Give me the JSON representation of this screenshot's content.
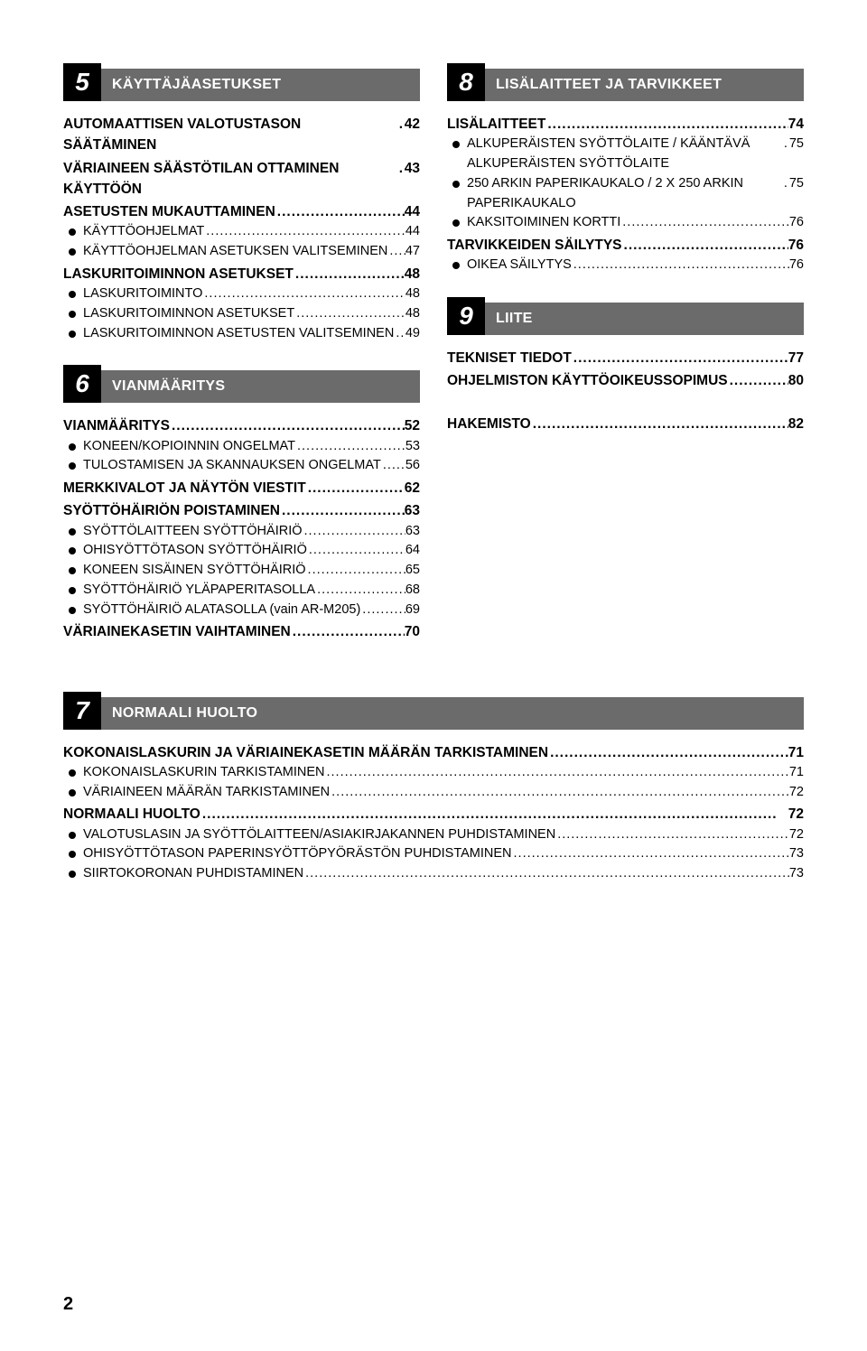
{
  "page_number": "2",
  "colors": {
    "section_num_bg": "#000000",
    "section_title_bg": "#6b6b6b",
    "text": "#000000",
    "bg": "#ffffff"
  },
  "sections": [
    {
      "num": "5",
      "title": "KÄYTTÄJÄASETUKSET",
      "col": 0,
      "items": [
        {
          "l": 1,
          "t": "AUTOMAATTISEN VALOTUSTASON SÄÄTÄMINEN",
          "p": "42"
        },
        {
          "l": 1,
          "t": "VÄRIAINEEN SÄÄSTÖTILAN OTTAMINEN KÄYTTÖÖN",
          "p": "43"
        },
        {
          "l": 1,
          "t": "ASETUSTEN MUKAUTTAMINEN",
          "p": "44"
        },
        {
          "l": 2,
          "t": "KÄYTTÖOHJELMAT",
          "p": "44"
        },
        {
          "l": 2,
          "t": "KÄYTTÖOHJELMAN ASETUKSEN VALITSEMINEN",
          "p": "47"
        },
        {
          "l": 1,
          "t": "LASKURITOIMINNON ASETUKSET",
          "p": "48"
        },
        {
          "l": 2,
          "t": "LASKURITOIMINTO",
          "p": "48"
        },
        {
          "l": 2,
          "t": "LASKURITOIMINNON ASETUKSET",
          "p": "48"
        },
        {
          "l": 2,
          "t": "LASKURITOIMINNON ASETUSTEN VALITSEMINEN",
          "p": "49"
        }
      ]
    },
    {
      "num": "6",
      "title": "VIANMÄÄRITYS",
      "col": 0,
      "items": [
        {
          "l": 1,
          "t": "VIANMÄÄRITYS",
          "p": "52"
        },
        {
          "l": 2,
          "t": "KONEEN/KOPIOINNIN ONGELMAT",
          "p": "53"
        },
        {
          "l": 2,
          "t": "TULOSTAMISEN JA SKANNAUKSEN ONGELMAT",
          "p": "56"
        },
        {
          "l": 1,
          "t": "MERKKIVALOT JA NÄYTÖN VIESTIT",
          "p": "62"
        },
        {
          "l": 1,
          "t": "SYÖTTÖHÄIRIÖN POISTAMINEN",
          "p": "63"
        },
        {
          "l": 2,
          "t": "SYÖTTÖLAITTEEN SYÖTTÖHÄIRIÖ",
          "p": "63"
        },
        {
          "l": 2,
          "t": "OHISYÖTTÖTASON SYÖTTÖHÄIRIÖ",
          "p": "64"
        },
        {
          "l": 2,
          "t": "KONEEN SISÄINEN SYÖTTÖHÄIRIÖ",
          "p": "65"
        },
        {
          "l": 2,
          "t": "SYÖTTÖHÄIRIÖ YLÄPAPERITASOLLA",
          "p": "68"
        },
        {
          "l": 2,
          "t": "SYÖTTÖHÄIRIÖ ALATASOLLA (vain AR-M205)",
          "p": "69"
        },
        {
          "l": 1,
          "t": "VÄRIAINEKASETIN VAIHTAMINEN",
          "p": "70"
        }
      ]
    },
    {
      "num": "7",
      "title": "NORMAALI HUOLTO",
      "col": 0,
      "after_break": true,
      "items": [
        {
          "l": 1,
          "t": "KOKONAISLASKURIN JA VÄRIAINEKASETIN MÄÄRÄN TARKISTAMINEN",
          "p": "71"
        },
        {
          "l": 2,
          "t": "KOKONAISLASKURIN TARKISTAMINEN",
          "p": "71"
        },
        {
          "l": 2,
          "t": "VÄRIAINEEN MÄÄRÄN TARKISTAMINEN",
          "p": "72"
        },
        {
          "l": 1,
          "t": "NORMAALI HUOLTO",
          "p": "72"
        },
        {
          "l": 2,
          "t": "VALOTUSLASIN JA SYÖTTÖLAITTEEN/ASIAKIRJAKANNEN PUHDISTAMINEN",
          "p": "72"
        },
        {
          "l": 2,
          "t": "OHISYÖTTÖTASON PAPERINSYÖTTÖPYÖRÄSTÖN PUHDISTAMINEN",
          "p": "73"
        },
        {
          "l": 2,
          "t": "SIIRTOKORONAN PUHDISTAMINEN",
          "p": "73"
        }
      ]
    },
    {
      "num": "8",
      "title": "LISÄLAITTEET JA TARVIKKEET",
      "col": 1,
      "items": [
        {
          "l": 1,
          "t": "LISÄLAITTEET",
          "p": "74"
        },
        {
          "l": 2,
          "t": "ALKUPERÄISTEN SYÖTTÖLAITE / KÄÄNTÄVÄ ALKUPERÄISTEN SYÖTTÖLAITE",
          "p": "75"
        },
        {
          "l": 2,
          "t": "250 ARKIN PAPERIKAUKALO / 2 X 250 ARKIN PAPERIKAUKALO",
          "p": "75"
        },
        {
          "l": 2,
          "t": "KAKSITOIMINEN KORTTI",
          "p": "76"
        },
        {
          "l": 1,
          "t": "TARVIKKEIDEN SÄILYTYS",
          "p": "76"
        },
        {
          "l": 2,
          "t": "OIKEA SÄILYTYS",
          "p": "76"
        }
      ]
    },
    {
      "num": "9",
      "title": "LIITE",
      "col": 1,
      "items": [
        {
          "l": 1,
          "t": "TEKNISET TIEDOT",
          "p": "77"
        },
        {
          "l": 1,
          "t": "OHJELMISTON KÄYTTÖOIKEUSSOPIMUS",
          "p": "80"
        }
      ],
      "tail": [
        {
          "l": 1,
          "t": "HAKEMISTO",
          "p": "82"
        }
      ]
    }
  ]
}
